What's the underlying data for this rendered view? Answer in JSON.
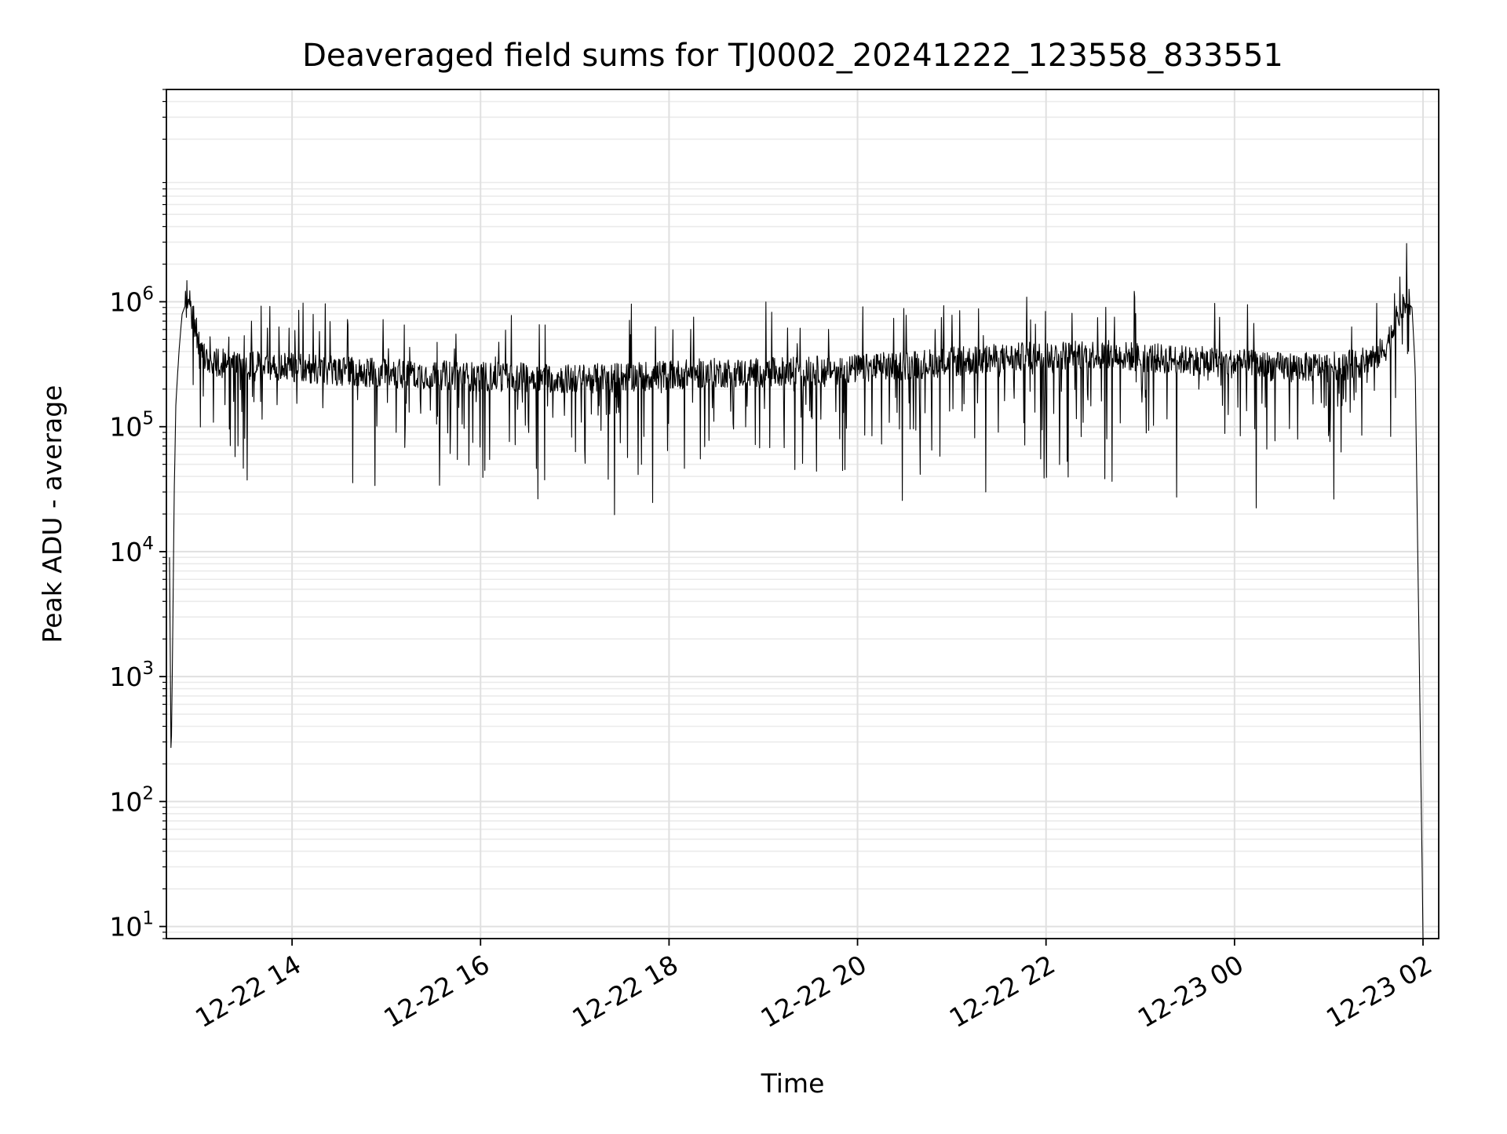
{
  "chart_data": {
    "type": "line",
    "title": "Deaveraged field sums for TJ0002_20241222_123558_833551",
    "xlabel": "Time",
    "ylabel": "Peak ADU - average",
    "yscale": "log",
    "xlim": [
      "2024-12-22 12:40",
      "2024-12-23 02:10"
    ],
    "ylim": [
      8,
      50000000
    ],
    "grid": "major and minor, light gray",
    "line_color": "#000000",
    "x_ticks": [
      {
        "value": "2024-12-22 14:00",
        "label": "12-22 14"
      },
      {
        "value": "2024-12-22 16:00",
        "label": "12-22 16"
      },
      {
        "value": "2024-12-22 18:00",
        "label": "12-22 18"
      },
      {
        "value": "2024-12-22 20:00",
        "label": "12-22 20"
      },
      {
        "value": "2024-12-22 22:00",
        "label": "12-22 22"
      },
      {
        "value": "2024-12-23 00:00",
        "label": "12-23 00"
      },
      {
        "value": "2024-12-23 02:00",
        "label": "12-23 02"
      }
    ],
    "y_ticks": [
      {
        "value": 10,
        "base": "10",
        "exp": "1"
      },
      {
        "value": 100,
        "base": "10",
        "exp": "2"
      },
      {
        "value": 1000,
        "base": "10",
        "exp": "3"
      },
      {
        "value": 10000,
        "base": "10",
        "exp": "4"
      },
      {
        "value": 100000,
        "base": "10",
        "exp": "5"
      },
      {
        "value": 1000000,
        "base": "10",
        "exp": "6"
      }
    ],
    "series": [
      {
        "x": [
          "2024-12-22 12:42",
          "2024-12-22 12:43",
          "2024-12-22 12:44",
          "2024-12-22 12:45",
          "2024-12-22 12:46",
          "2024-12-22 12:48",
          "2024-12-22 12:50",
          "2024-12-22 12:53",
          "2024-12-22 12:56",
          "2024-12-22 13:00",
          "2024-12-22 13:05",
          "2024-12-22 13:10",
          "2024-12-22 13:20",
          "2024-12-22 13:30",
          "2024-12-22 13:45",
          "2024-12-22 14:00",
          "2024-12-22 14:30",
          "2024-12-22 15:00",
          "2024-12-22 15:30",
          "2024-12-22 16:00",
          "2024-12-22 16:30",
          "2024-12-22 17:00",
          "2024-12-22 17:30",
          "2024-12-22 18:00",
          "2024-12-22 18:30",
          "2024-12-22 19:00",
          "2024-12-22 19:30",
          "2024-12-22 20:00",
          "2024-12-22 20:30",
          "2024-12-22 21:00",
          "2024-12-22 21:30",
          "2024-12-22 22:00",
          "2024-12-22 22:30",
          "2024-12-22 23:00",
          "2024-12-22 23:30",
          "2024-12-23 00:00",
          "2024-12-23 00:30",
          "2024-12-23 01:00",
          "2024-12-23 01:20",
          "2024-12-23 01:35",
          "2024-12-23 01:45",
          "2024-12-23 01:50",
          "2024-12-23 01:53",
          "2024-12-23 01:55",
          "2024-12-23 01:57",
          "2024-12-23 01:59",
          "2024-12-23 02:00"
        ],
        "y": [
          9000,
          200,
          2000,
          30000,
          150000,
          400000,
          800000,
          1000000,
          900000,
          500000,
          350000,
          330000,
          320000,
          310000,
          300000,
          300000,
          280000,
          270000,
          260000,
          250000,
          250000,
          240000,
          250000,
          260000,
          270000,
          270000,
          280000,
          290000,
          310000,
          330000,
          350000,
          370000,
          380000,
          360000,
          340000,
          320000,
          300000,
          300000,
          320000,
          400000,
          800000,
          1000000,
          900000,
          300000,
          5000,
          80,
          8
        ]
      }
    ]
  }
}
